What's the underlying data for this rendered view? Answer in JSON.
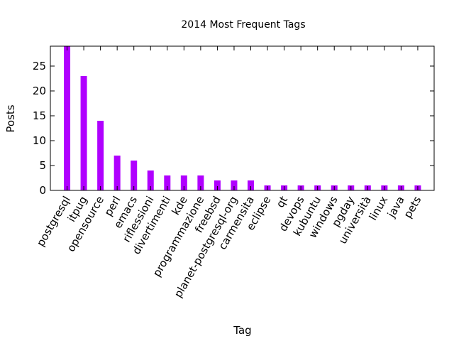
{
  "chart_data": {
    "type": "bar",
    "title": "2014 Most Frequent Tags",
    "xlabel": "Tag",
    "ylabel": "Posts",
    "ylim": [
      0,
      29
    ],
    "yticks": [
      0,
      5,
      10,
      15,
      20,
      25
    ],
    "grid": false,
    "legend": "none",
    "bar_color": "#b000ff",
    "categories": [
      "postgresql",
      "itpug",
      "opensource",
      "perl",
      "emacs",
      "riflessioni",
      "divertimenti",
      "kde",
      "programmazione",
      "freebsd",
      "planet-postgresql-org",
      "carmensita",
      "eclipse",
      "qt",
      "devops",
      "kubuntu",
      "windows",
      "pgday",
      "università",
      "linux",
      "java",
      "pets"
    ],
    "values": [
      29,
      23,
      14,
      7,
      6,
      4,
      3,
      3,
      3,
      2,
      2,
      2,
      1,
      1,
      1,
      1,
      1,
      1,
      1,
      1,
      1,
      1
    ]
  }
}
